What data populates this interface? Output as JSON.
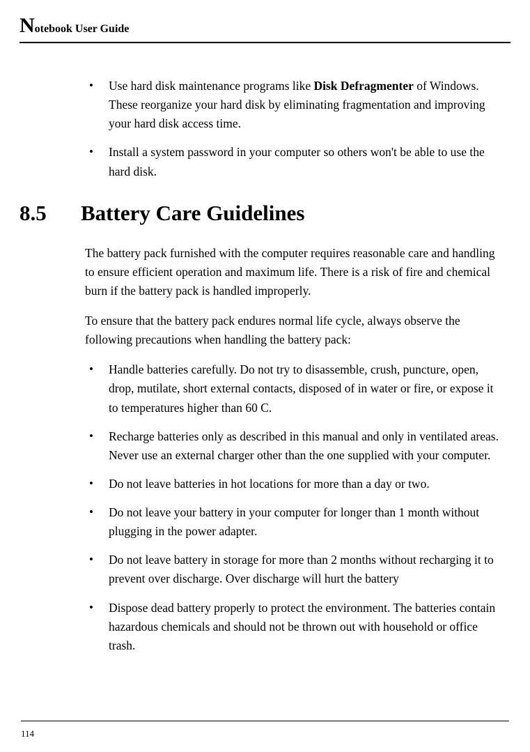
{
  "header": {
    "dropcap": "N",
    "rest": "otebook User Guide"
  },
  "top_bullets": [
    {
      "prefix": "Use hard disk maintenance programs like ",
      "bold": "Disk Defragmenter",
      "suffix": " of Windows. These reorganize your hard disk by eliminating fragmentation and improving your hard disk access time."
    },
    {
      "prefix": "Install a system password in your computer so others won't be able to use the hard disk.",
      "bold": "",
      "suffix": ""
    }
  ],
  "section": {
    "number": "8.5",
    "title": "Battery Care Guidelines"
  },
  "paragraphs": [
    "The battery pack furnished with the computer requires reasonable care and handling to ensure efficient operation and maximum life. There is a risk of fire and chemical burn if the battery pack is handled improperly.",
    "To ensure that the battery pack endures normal life cycle, always observe the following precautions when handling the battery pack:"
  ],
  "main_bullets": [
    "Handle batteries carefully. Do not try to disassemble, crush, puncture, open, drop, mutilate, short external contacts, disposed of in water or fire, or expose it to temperatures higher than 60 C.",
    "Recharge batteries only as described in this manual and only in ventilated areas. Never use an external charger other than the one supplied with your computer.",
    "Do not leave batteries in hot locations for more than a day or two.",
    "Do not leave your battery in your computer for longer than 1 month without plugging in the power adapter.",
    "Do not leave battery in storage for more than 2 months without recharging it to prevent over discharge. Over discharge will hurt the battery",
    "Dispose dead battery properly to protect the environment. The batteries contain hazardous chemicals and should not be thrown out with household or office trash."
  ],
  "page_number": "114"
}
